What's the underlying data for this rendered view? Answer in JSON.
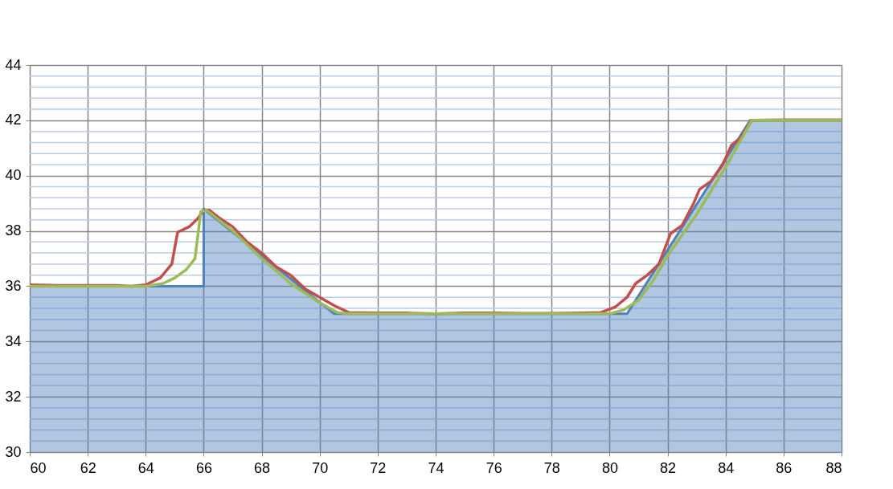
{
  "chart_data": {
    "type": "line",
    "xlim": [
      60,
      88
    ],
    "xticks": [
      60,
      62,
      64,
      66,
      68,
      70,
      72,
      74,
      76,
      78,
      80,
      82,
      84,
      86,
      88
    ],
    "ylim": [
      30,
      44
    ],
    "yticks": [
      30,
      {
        "value": 30.4,
        "label": null
      },
      {
        "value": 30.8,
        "label": null
      },
      {
        "value": 31.2,
        "label": null
      },
      {
        "value": 31.6,
        "label": null
      },
      32,
      {
        "value": 32.4,
        "label": null
      },
      {
        "value": 32.8,
        "label": null
      },
      {
        "value": 33.2,
        "label": null
      },
      {
        "value": 33.6,
        "label": null
      },
      34,
      {
        "value": 34.4,
        "label": null
      },
      {
        "value": 34.8,
        "label": null
      },
      {
        "value": 35.2,
        "label": null
      },
      {
        "value": 35.6,
        "label": null
      },
      36,
      {
        "value": 36.4,
        "label": null
      },
      {
        "value": 36.8,
        "label": null
      },
      {
        "value": 37.2,
        "label": null
      },
      {
        "value": 37.6,
        "label": null
      },
      38,
      {
        "value": 38.4,
        "label": null
      },
      {
        "value": 38.8,
        "label": null
      },
      {
        "value": 39.2,
        "label": null
      },
      {
        "value": 39.6,
        "label": null
      },
      40,
      {
        "value": 40.4,
        "label": null
      },
      {
        "value": 40.8,
        "label": null
      },
      {
        "value": 41.2,
        "label": null
      },
      {
        "value": 41.6,
        "label": null
      },
      42,
      {
        "value": 42.4,
        "label": null
      },
      {
        "value": 42.8,
        "label": null
      },
      {
        "value": 43.2,
        "label": null
      },
      {
        "value": 43.6,
        "label": null
      },
      44
    ],
    "grid": true,
    "marker": "none",
    "line_style": "solid",
    "series": [
      {
        "type": "area",
        "color": "#4f81bd",
        "x": [
          60,
          66,
          66,
          70.5,
          80.6,
          84.85,
          88
        ],
        "values": [
          36,
          36,
          38.8,
          35,
          35,
          42,
          42
        ]
      },
      {
        "color": "#c0504d",
        "x": [
          60,
          61,
          62,
          63,
          63.5,
          64,
          64.5,
          64.9,
          65.1,
          65.5,
          65.8,
          66,
          66.2,
          66.5,
          67,
          67.5,
          68,
          68.5,
          69,
          69.5,
          70,
          70.5,
          71,
          72,
          73,
          74,
          75,
          76,
          77,
          78,
          79,
          79.7,
          80.2,
          80.6,
          80.9,
          81.3,
          81.7,
          82.1,
          82.5,
          82.9,
          83.1,
          83.5,
          83.9,
          84.2,
          84.5,
          84.9,
          86,
          87,
          88
        ],
        "values": [
          36.05,
          36.03,
          36.03,
          36.03,
          36.0,
          36.05,
          36.3,
          36.8,
          37.95,
          38.15,
          38.45,
          38.75,
          38.75,
          38.5,
          38.15,
          37.6,
          37.2,
          36.7,
          36.4,
          35.9,
          35.6,
          35.3,
          35.05,
          35.03,
          35.03,
          35.0,
          35.03,
          35.03,
          35.02,
          35.02,
          35.03,
          35.05,
          35.25,
          35.6,
          36.1,
          36.4,
          36.8,
          37.9,
          38.2,
          39.0,
          39.5,
          39.8,
          40.4,
          41.1,
          41.35,
          42.0,
          42.02,
          42.02,
          42.02
        ]
      },
      {
        "color": "#9bbb59",
        "x": [
          60,
          64,
          64.6,
          65,
          65.4,
          65.7,
          65.9,
          66.1,
          67,
          68,
          69,
          70,
          70.6,
          71,
          80,
          80.5,
          81,
          81.5,
          82,
          83,
          84,
          84.9,
          88
        ],
        "values": [
          36.0,
          36.0,
          36.1,
          36.3,
          36.6,
          37.0,
          38.7,
          38.75,
          38.0,
          37.0,
          36.1,
          35.4,
          35.05,
          35.0,
          35.0,
          35.15,
          35.5,
          36.2,
          37.1,
          38.6,
          40.3,
          42.0,
          42.0
        ]
      }
    ]
  }
}
